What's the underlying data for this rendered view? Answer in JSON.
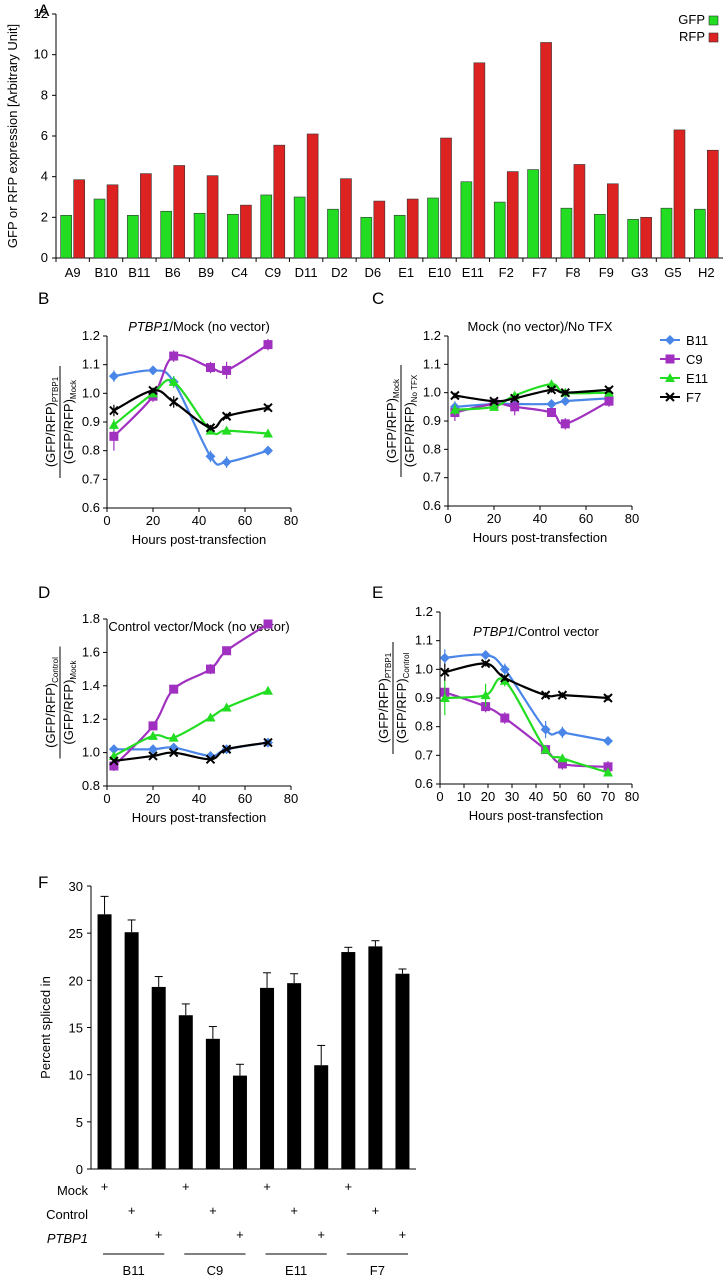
{
  "chart_data": [
    {
      "panel": "A",
      "type": "bar",
      "ylabel": "GFP or RFP expression [Arbitrary Unit]",
      "ylim": [
        0,
        12
      ],
      "yticks": [
        0,
        2,
        4,
        6,
        8,
        10,
        12
      ],
      "categories": [
        "A9",
        "B10",
        "B11",
        "B6",
        "B9",
        "C4",
        "C9",
        "D11",
        "D2",
        "D6",
        "E1",
        "E10",
        "E11",
        "F2",
        "F7",
        "F8",
        "F9",
        "G3",
        "G5",
        "H2"
      ],
      "series": [
        {
          "name": "GFP",
          "color": "#22dd22",
          "values": [
            2.1,
            2.9,
            2.1,
            2.3,
            2.2,
            2.15,
            3.1,
            3.0,
            2.4,
            2.0,
            2.1,
            2.95,
            3.75,
            2.75,
            4.35,
            2.45,
            2.15,
            1.9,
            2.45,
            2.4
          ]
        },
        {
          "name": "RFP",
          "color": "#dd2222",
          "values": [
            3.85,
            3.6,
            4.15,
            4.55,
            4.05,
            2.6,
            5.55,
            6.1,
            3.9,
            2.8,
            2.9,
            5.9,
            9.6,
            4.25,
            10.6,
            4.6,
            3.65,
            2.0,
            6.3,
            5.3
          ]
        }
      ],
      "legend": "top-right"
    },
    {
      "panel": "B",
      "type": "line",
      "title_italic": "PTBP1",
      "title_rest": "/Mock (no vector)",
      "ylabel_num": "(GFP/RFP)",
      "ylabel_num_sub": "PTBP1",
      "ylabel_den": "(GFP/RFP)",
      "ylabel_den_sub": "Mock",
      "xlabel": "Hours post-transfection",
      "xlim": [
        0,
        80
      ],
      "xticks": [
        0,
        20,
        40,
        60,
        80
      ],
      "ylim": [
        0.6,
        1.2
      ],
      "yticks": [
        "0.6",
        "0.7",
        "0.8",
        "0.9",
        "1.0",
        "1.1",
        "1.2"
      ],
      "x": [
        3,
        20,
        29,
        45,
        52,
        70
      ],
      "series": [
        {
          "name": "B11",
          "values": [
            1.06,
            1.08,
            1.04,
            0.78,
            0.76,
            0.8
          ],
          "err": [
            0.02,
            0.01,
            0.02,
            0.02,
            0.02,
            0.01
          ]
        },
        {
          "name": "C9",
          "values": [
            0.85,
            0.99,
            1.13,
            1.09,
            1.08,
            1.17
          ],
          "err": [
            0.05,
            0.02,
            0.02,
            0.02,
            0.03,
            0.02
          ]
        },
        {
          "name": "E11",
          "values": [
            0.89,
            1.0,
            1.04,
            0.87,
            0.87,
            0.86
          ],
          "err": [
            0.02,
            0.01,
            0.02,
            0.01,
            0.01,
            0.01
          ]
        },
        {
          "name": "F7",
          "values": [
            0.94,
            1.01,
            0.97,
            0.88,
            0.92,
            0.95
          ],
          "err": [
            0.02,
            0.01,
            0.02,
            0.01,
            0.01,
            0.01
          ]
        }
      ]
    },
    {
      "panel": "C",
      "type": "line",
      "title": "Mock (no vector)/No TFX",
      "ylabel_num": "(GFP/RFP)",
      "ylabel_num_sub": "Mock",
      "ylabel_den": "(GFP/RFP)",
      "ylabel_den_sub": "No TFX",
      "xlabel": "Hours post-transfection",
      "xlim": [
        0,
        80
      ],
      "xticks": [
        0,
        20,
        40,
        60,
        80
      ],
      "ylim": [
        0.6,
        1.2
      ],
      "yticks": [
        "0.6",
        "0.7",
        "0.8",
        "0.9",
        "1.0",
        "1.1",
        "1.2"
      ],
      "x": [
        3,
        20,
        29,
        45,
        51,
        70
      ],
      "series": [
        {
          "name": "B11",
          "values": [
            0.95,
            0.96,
            0.96,
            0.96,
            0.97,
            0.98
          ],
          "err": [
            0.02,
            0.01,
            0.01,
            0.01,
            0.01,
            0.01
          ]
        },
        {
          "name": "C9",
          "values": [
            0.93,
            0.96,
            0.95,
            0.93,
            0.89,
            0.97
          ],
          "err": [
            0.03,
            0.01,
            0.03,
            0.01,
            0.02,
            0.02
          ]
        },
        {
          "name": "E11",
          "values": [
            0.94,
            0.95,
            0.99,
            1.03,
            1.0,
            1.0
          ],
          "err": [
            0.02,
            0.01,
            0.01,
            0.01,
            0.01,
            0.01
          ]
        },
        {
          "name": "F7",
          "values": [
            0.99,
            0.97,
            0.98,
            1.01,
            1.0,
            1.01
          ],
          "err": [
            0.01,
            0.01,
            0.01,
            0.01,
            0.01,
            0.01
          ]
        }
      ],
      "legend": "top-right"
    },
    {
      "panel": "D",
      "type": "line",
      "title": "Control vector/Mock (no vector)",
      "ylabel_num": "(GFP/RFP)",
      "ylabel_num_sub": "Control",
      "ylabel_den": "(GFP/RFP)",
      "ylabel_den_sub": "Mock",
      "xlabel": "Hours post-transfection",
      "xlim": [
        0,
        80
      ],
      "xticks": [
        0,
        20,
        40,
        60,
        80
      ],
      "ylim": [
        0.8,
        1.8
      ],
      "yticks": [
        "0.8",
        "1.0",
        "1.2",
        "1.4",
        "1.6",
        "1.8"
      ],
      "x": [
        3,
        20,
        29,
        45,
        52,
        70
      ],
      "series": [
        {
          "name": "B11",
          "values": [
            1.02,
            1.02,
            1.03,
            0.98,
            1.02,
            1.06
          ],
          "err": [
            0.02,
            0.01,
            0.01,
            0.01,
            0.01,
            0.01
          ]
        },
        {
          "name": "C9",
          "values": [
            0.92,
            1.16,
            1.38,
            1.5,
            1.61,
            1.77
          ],
          "err": [
            0.03,
            0.01,
            0.02,
            0.03,
            0.01,
            0.01
          ]
        },
        {
          "name": "E11",
          "values": [
            0.98,
            1.1,
            1.09,
            1.21,
            1.27,
            1.37
          ],
          "err": [
            0.01,
            0.01,
            0.01,
            0.01,
            0.01,
            0.01
          ]
        },
        {
          "name": "F7",
          "values": [
            0.95,
            0.98,
            1.0,
            0.96,
            1.02,
            1.06
          ],
          "err": [
            0.01,
            0.01,
            0.01,
            0.01,
            0.01,
            0.01
          ]
        }
      ]
    },
    {
      "panel": "E",
      "type": "line",
      "title_italic": "PTBP1",
      "title_rest": "/Control vector",
      "ylabel_num": "(GFP/RFP)",
      "ylabel_num_sub": "PTBP1",
      "ylabel_den": "(GFP/RFP)",
      "ylabel_den_sub": "Control",
      "xlabel": "Hours post-transfection",
      "xlim": [
        0,
        80
      ],
      "xticks": [
        0,
        10,
        20,
        30,
        40,
        50,
        60,
        70,
        80
      ],
      "ylim": [
        0.6,
        1.2
      ],
      "yticks": [
        "0.6",
        "0.7",
        "0.8",
        "0.9",
        "1.0",
        "1.1",
        "1.2"
      ],
      "x": [
        2,
        19,
        27,
        44,
        51,
        70
      ],
      "series": [
        {
          "name": "B11",
          "values": [
            1.04,
            1.05,
            1.0,
            0.79,
            0.78,
            0.75
          ],
          "err": [
            0.03,
            0.01,
            0.02,
            0.03,
            0.02,
            0.01
          ]
        },
        {
          "name": "C9",
          "values": [
            0.92,
            0.87,
            0.83,
            0.72,
            0.67,
            0.66
          ],
          "err": [
            0.02,
            0.02,
            0.02,
            0.01,
            0.02,
            0.02
          ]
        },
        {
          "name": "E11",
          "values": [
            0.9,
            0.91,
            0.96,
            0.72,
            0.69,
            0.64
          ],
          "err": [
            0.06,
            0.04,
            0.02,
            0.01,
            0.01,
            0.01
          ]
        },
        {
          "name": "F7",
          "values": [
            0.99,
            1.02,
            0.97,
            0.91,
            0.91,
            0.9
          ],
          "err": [
            0.03,
            0.01,
            0.01,
            0.01,
            0.01,
            0.01
          ]
        }
      ]
    },
    {
      "panel": "F",
      "type": "bar",
      "ylabel": "Percent spliced in",
      "ylim": [
        0,
        30
      ],
      "yticks": [
        0,
        5,
        10,
        15,
        20,
        25,
        30
      ],
      "groups": [
        "B11",
        "C9",
        "E11",
        "F7"
      ],
      "values": [
        27.0,
        25.1,
        19.3,
        16.3,
        13.8,
        9.9,
        19.2,
        19.7,
        11.0,
        23.0,
        23.6,
        20.7
      ],
      "err": [
        1.9,
        1.3,
        1.1,
        1.2,
        1.3,
        1.2,
        1.6,
        1.0,
        2.1,
        0.5,
        0.6,
        0.5
      ],
      "conditions": [
        {
          "label": "Mock",
          "italic": false
        },
        {
          "label": "Control",
          "italic": false
        },
        {
          "label": "PTBP1",
          "italic": true
        }
      ],
      "mark": "+"
    }
  ],
  "panel_labels": [
    "A",
    "B",
    "C",
    "D",
    "E",
    "F"
  ],
  "colors": {
    "B11": "#4a86e8",
    "C9": "#a030c0",
    "E11": "#22dd22",
    "F7": "#000000",
    "GFP": "#22dd22",
    "RFP": "#dd2222",
    "F_bars": "#000000"
  }
}
